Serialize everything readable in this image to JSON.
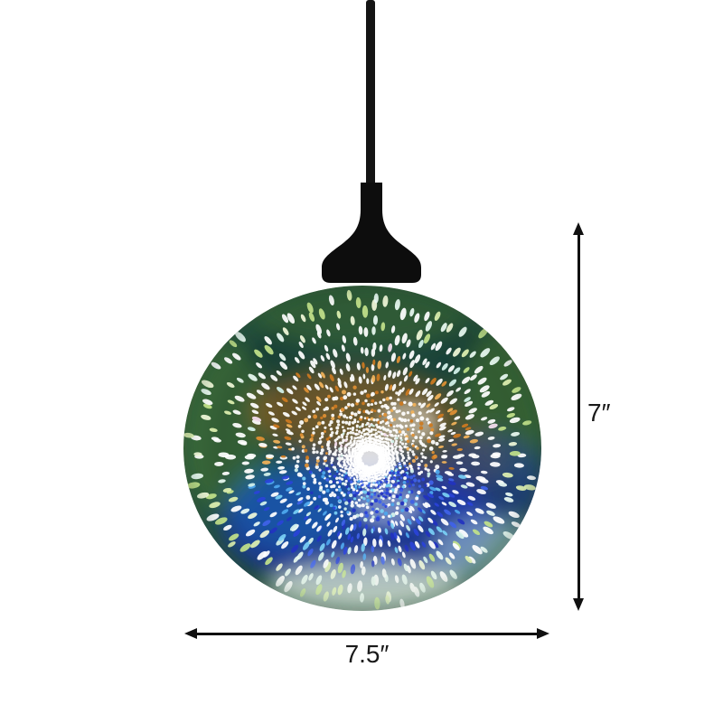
{
  "background": "#ffffff",
  "annotation": {
    "color": "#101010",
    "arrow_icon": "double-headed-arrow"
  },
  "dimensions": {
    "height": {
      "label": "7″"
    },
    "width": {
      "label": "7.5″"
    }
  },
  "lamp": {
    "fitting_color": "#0d0d0d",
    "cord_color": "#141414",
    "globe_palette": {
      "base_center": "#2f5f52",
      "base_dark": "#1b463e",
      "rim_green": "#2e5c46",
      "dot_white": "#ffffff",
      "dot_green": [
        "#dff0b0",
        "#c2e18a",
        "#f0f8d8"
      ],
      "dot_blue": [
        "#2a43d8",
        "#3f62e8",
        "#4fa8ee",
        "#7ad0f5",
        "#2233c0"
      ],
      "dot_orange": [
        "#e09034",
        "#cd7a20",
        "#f2b35a"
      ],
      "dot_cyan": "#d5f3ec",
      "dot_pink": "#f6dff0",
      "blob_orange": "#b06018",
      "blob_blue": "#1c2fc0",
      "blob_cyan": "#1888c8",
      "blob_green": "#4a7a30",
      "bottom_pale": "#cfdecf"
    }
  }
}
